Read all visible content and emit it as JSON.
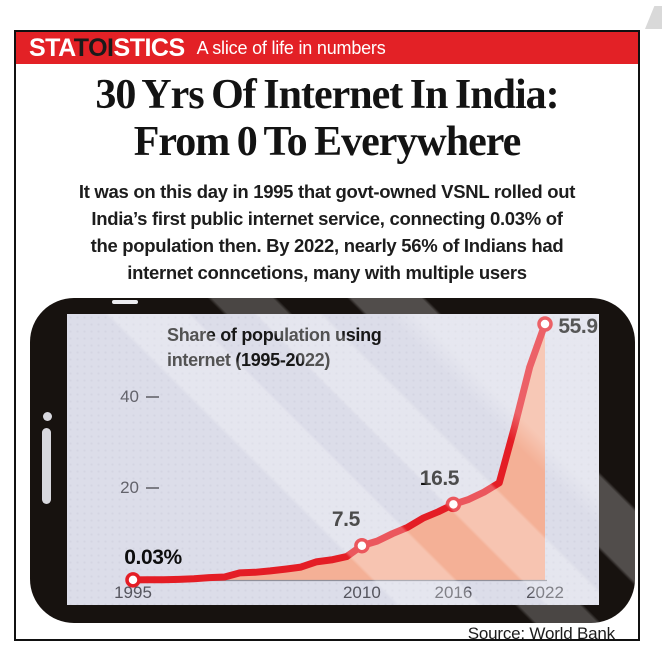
{
  "masthead": {
    "brand": {
      "pre": "STA",
      "mid": "TOI",
      "post": "STICS"
    },
    "tagline": "A slice of life in numbers"
  },
  "headline": {
    "lines": [
      "30 Yrs Of Internet In India:",
      "From 0 To Everywhere"
    ]
  },
  "intro": {
    "lines": [
      "It was on this day in 1995 that govt-owned VSNL rolled out",
      "India’s first public internet service, connecting 0.03% of",
      "the population then. By 2022, nearly 56% of Indians had",
      "internet conncetions, many with multiple users"
    ]
  },
  "chart_data": {
    "type": "area",
    "title": "Share of population using\ninternet (1995-2022)",
    "xlabel": "",
    "ylabel": "Share of population using internet (%)",
    "xlim": [
      1995,
      2022
    ],
    "ylim": [
      0,
      58
    ],
    "x_ticks": [
      "1995",
      "2010",
      "2016",
      "2022"
    ],
    "y_ticks": [
      20,
      40
    ],
    "grid": false,
    "legend": "none",
    "series": [
      {
        "name": "Share of population using internet (%)",
        "x": [
          1995,
          1996,
          1997,
          1998,
          1999,
          2000,
          2001,
          2002,
          2003,
          2004,
          2005,
          2006,
          2007,
          2008,
          2009,
          2010,
          2011,
          2012,
          2013,
          2014,
          2015,
          2016,
          2017,
          2018,
          2019,
          2020,
          2021,
          2022
        ],
        "values": [
          0.03,
          0.05,
          0.07,
          0.14,
          0.27,
          0.53,
          0.66,
          1.54,
          1.69,
          1.98,
          2.39,
          2.81,
          3.95,
          4.38,
          5.12,
          7.5,
          8.5,
          10.1,
          11.5,
          13.5,
          14.9,
          16.5,
          17.6,
          19.2,
          21.2,
          33.4,
          46.5,
          55.9
        ]
      }
    ],
    "labeled_points": [
      {
        "x": 1995,
        "y": 0.03,
        "label": "0.03%"
      },
      {
        "x": 2010,
        "y": 7.5,
        "label": "7.5"
      },
      {
        "x": 2016,
        "y": 16.5,
        "label": "16.5"
      },
      {
        "x": 2022,
        "y": 55.9,
        "label": "55.9"
      }
    ],
    "line_color": "#e41d25",
    "fill_color": "#f4b096",
    "marker_style": "white dot with red ring"
  },
  "source": {
    "text": "Source: World Bank"
  },
  "colors": {
    "brand_red": "#e32126",
    "line_red": "#e41d25",
    "area_salmon": "#f4b096",
    "screen_lavender": "#dcdde9",
    "phone_black": "#17120f",
    "tick_gray": "#63636b"
  }
}
